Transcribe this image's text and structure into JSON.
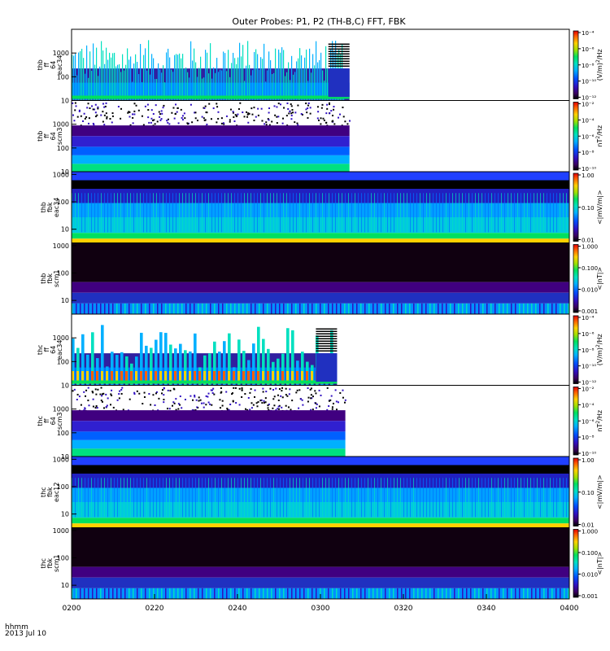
{
  "chart_data": {
    "type": "heatmap",
    "title": "Outer Probes: P1, P2 (TH-B,C) FFT, FBK",
    "x_range": [
      "0200",
      "0400"
    ],
    "x_ticks": [
      "0200",
      "0220",
      "0240",
      "0300",
      "0320",
      "0340",
      "0400"
    ],
    "x_tick_minutes": [
      0,
      20,
      40,
      60,
      80,
      100,
      120
    ],
    "x_label_line1": "hhmm",
    "x_label_line2": "2013 Jul 10",
    "panels": [
      {
        "id": "thb-ff-eac34",
        "ylabel": [
          "thb",
          "ff",
          "64",
          "eac34"
        ],
        "yticks": [
          "10",
          "100",
          "1000"
        ],
        "ylog": [
          1,
          4
        ],
        "zlabel": "(V/m)²/Hz",
        "zlabel_html": "(V/m)<tspan baseline-shift='super' font-size='6'>2</tspan>/Hz",
        "zticks": [
          "10⁻⁴",
          "10⁻⁶",
          "10⁻⁸",
          "10⁻¹⁰",
          "10⁻¹²"
        ],
        "data_end_min": 67,
        "style": "spiky",
        "base": "#00d0ff"
      },
      {
        "id": "thb-ff-scm3",
        "ylabel": [
          "thb",
          "ff",
          "64",
          "scm3"
        ],
        "yticks": [
          "10",
          "100",
          "1000"
        ],
        "ylog": [
          1,
          4
        ],
        "zlabel": "nT²/Hz",
        "zlabel_html": "nT<tspan baseline-shift='super' font-size='6'>2</tspan>/Hz",
        "zticks": [
          "10⁻²",
          "10⁻⁴",
          "10⁻⁶",
          "10⁻⁸",
          "10⁻¹⁰"
        ],
        "data_end_min": 67,
        "style": "banded",
        "base": "#2040ff"
      },
      {
        "id": "thb-fbk-eac34",
        "ylabel": [
          "thb",
          "fbk",
          "eac34"
        ],
        "yticks": [
          "10",
          "100",
          "1000"
        ],
        "ylog": [
          0.5,
          3.1
        ],
        "zlabel": "<|mV/m|>",
        "zlabel_html": "&lt;|mV/m|&gt;",
        "zticks": [
          "1.00",
          "0.10",
          "0.01"
        ],
        "data_end_min": 120,
        "style": "fbk",
        "base": "#00c0ff"
      },
      {
        "id": "thb-fbk-scm1",
        "ylabel": [
          "thb",
          "fbk",
          "scm1"
        ],
        "yticks": [
          "10",
          "100",
          "1000"
        ],
        "ylog": [
          0.5,
          3.1
        ],
        "zlabel": "<|nT|>",
        "zlabel_html": "&lt;|nT|&gt;",
        "zticks": [
          "1.000",
          "0.100",
          "0.010",
          "0.001"
        ],
        "data_end_min": 120,
        "style": "fbkdark",
        "base": "#3030d0"
      },
      {
        "id": "thc-ff-eac34",
        "ylabel": [
          "thc",
          "ff",
          "64",
          "eac34"
        ],
        "yticks": [
          "10",
          "100",
          "1000"
        ],
        "ylog": [
          1,
          4
        ],
        "zlabel": "(V/m)²/Hz",
        "zlabel_html": "(V/m)<tspan baseline-shift='super' font-size='6'>2</tspan>/Hz",
        "zticks": [
          "10⁻⁴",
          "10⁻⁶",
          "10⁻⁸",
          "10⁻¹⁰",
          "10⁻¹²"
        ],
        "data_end_min": 64,
        "style": "spiky2",
        "base": "#00d0ff"
      },
      {
        "id": "thc-ff-scm3",
        "ylabel": [
          "thc",
          "ff",
          "64",
          "scm3"
        ],
        "yticks": [
          "10",
          "100",
          "1000"
        ],
        "ylog": [
          1,
          4
        ],
        "zlabel": "nT²/Hz",
        "zlabel_html": "nT<tspan baseline-shift='super' font-size='6'>2</tspan>/Hz",
        "zticks": [
          "10⁻²",
          "10⁻⁴",
          "10⁻⁶",
          "10⁻⁸",
          "10⁻¹⁰"
        ],
        "data_end_min": 66,
        "style": "banded",
        "base": "#2040ff"
      },
      {
        "id": "thc-fbk-eac12",
        "ylabel": [
          "thc",
          "fbk",
          "eac12"
        ],
        "yticks": [
          "10",
          "100",
          "1000"
        ],
        "ylog": [
          0.5,
          3.1
        ],
        "zlabel": "<|mV/m|>",
        "zlabel_html": "&lt;|mV/m|&gt;",
        "zticks": [
          "1.00",
          "0.10",
          "0.01"
        ],
        "data_end_min": 120,
        "style": "fbk",
        "base": "#00c0ff"
      },
      {
        "id": "thc-fbk-scm1",
        "ylabel": [
          "thc",
          "fbk",
          "scm1"
        ],
        "yticks": [
          "10",
          "100",
          "1000"
        ],
        "ylog": [
          0.5,
          3.1
        ],
        "zlabel": "<|nT|>",
        "zlabel_html": "&lt;|nT|&gt;",
        "zticks": [
          "1.000",
          "0.100",
          "0.010",
          "0.001"
        ],
        "data_end_min": 120,
        "style": "fbkdark",
        "base": "#3030d0"
      }
    ]
  }
}
